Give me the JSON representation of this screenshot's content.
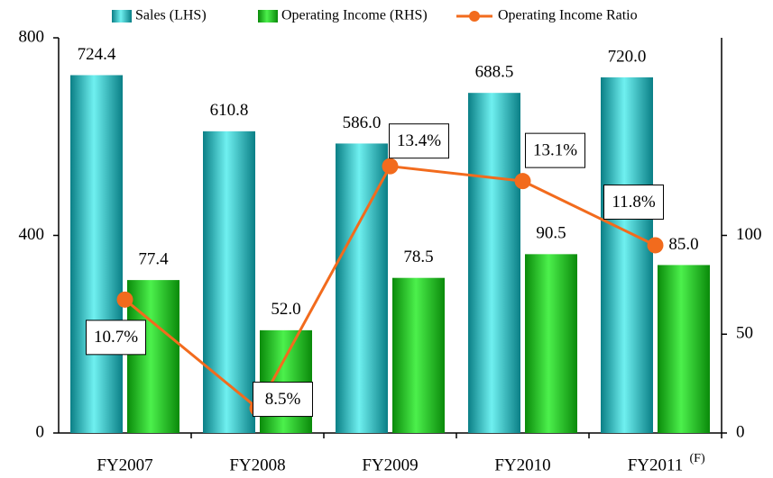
{
  "chart_data": {
    "type": "bar-line",
    "categories": [
      "FY2007",
      "FY2008",
      "FY2009",
      "FY2010",
      "FY2011"
    ],
    "annotation": "(F)",
    "series": [
      {
        "name": "Sales (LHS)",
        "type": "bar",
        "color": "#1fc8c8",
        "axis": "y",
        "values": [
          724.4,
          610.8,
          586.0,
          688.5,
          720.0
        ],
        "value_labels": [
          "724.4",
          "610.8",
          "586.0",
          "688.5",
          "720.0"
        ]
      },
      {
        "name": "Operating Income (RHS)",
        "type": "bar",
        "color": "#1ecc1e",
        "axis": "y2",
        "values": [
          77.4,
          52.0,
          78.5,
          90.5,
          85.0
        ],
        "value_labels": [
          "77.4",
          "52.0",
          "78.5",
          "90.5",
          "85.0"
        ]
      },
      {
        "name": "Operating Income Ratio",
        "type": "line",
        "color": "#f26b1d",
        "axis": "y3",
        "values": [
          10.7,
          8.5,
          13.4,
          13.1,
          11.8
        ],
        "value_labels": [
          "10.7%",
          "8.5%",
          "13.4%",
          "13.1%",
          "11.8%"
        ]
      }
    ],
    "ylim": [
      0,
      800
    ],
    "yticks": [
      0,
      400,
      800
    ],
    "y2lim": [
      0,
      200
    ],
    "y2ticks": [
      0,
      50,
      100
    ],
    "y3lim": [
      8,
      16
    ]
  }
}
